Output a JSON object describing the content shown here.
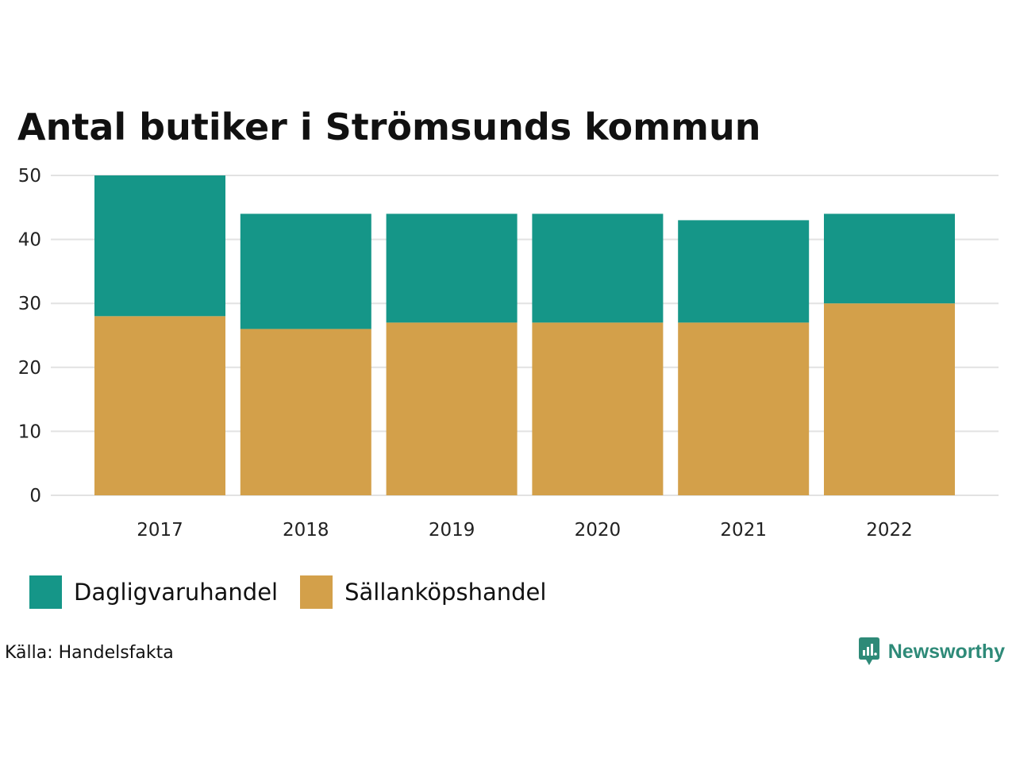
{
  "chart_data": {
    "type": "bar",
    "stacked": true,
    "title": "Antal butiker i Strömsunds kommun",
    "categories": [
      "2017",
      "2018",
      "2019",
      "2020",
      "2021",
      "2022"
    ],
    "series": [
      {
        "name": "Sällanköpshandel",
        "color": "#d3a04a",
        "values": [
          28,
          26,
          27,
          27,
          27,
          30
        ]
      },
      {
        "name": "Dagligvaruhandel",
        "color": "#159688",
        "values": [
          22,
          18,
          17,
          17,
          16,
          14
        ]
      }
    ],
    "xlabel": "",
    "ylabel": "",
    "ylim": [
      0,
      50
    ],
    "yticks": [
      "0",
      "10",
      "20",
      "30",
      "40",
      "50"
    ],
    "grid": true,
    "legend_position": "bottom-left",
    "legend": [
      "Dagligvaruhandel",
      "Sällanköpshandel"
    ]
  },
  "source": "Källa: Handelsfakta",
  "brand": {
    "name": "Newsworthy",
    "icon": "newsworthy-logo-icon",
    "color": "#2e8a78"
  }
}
